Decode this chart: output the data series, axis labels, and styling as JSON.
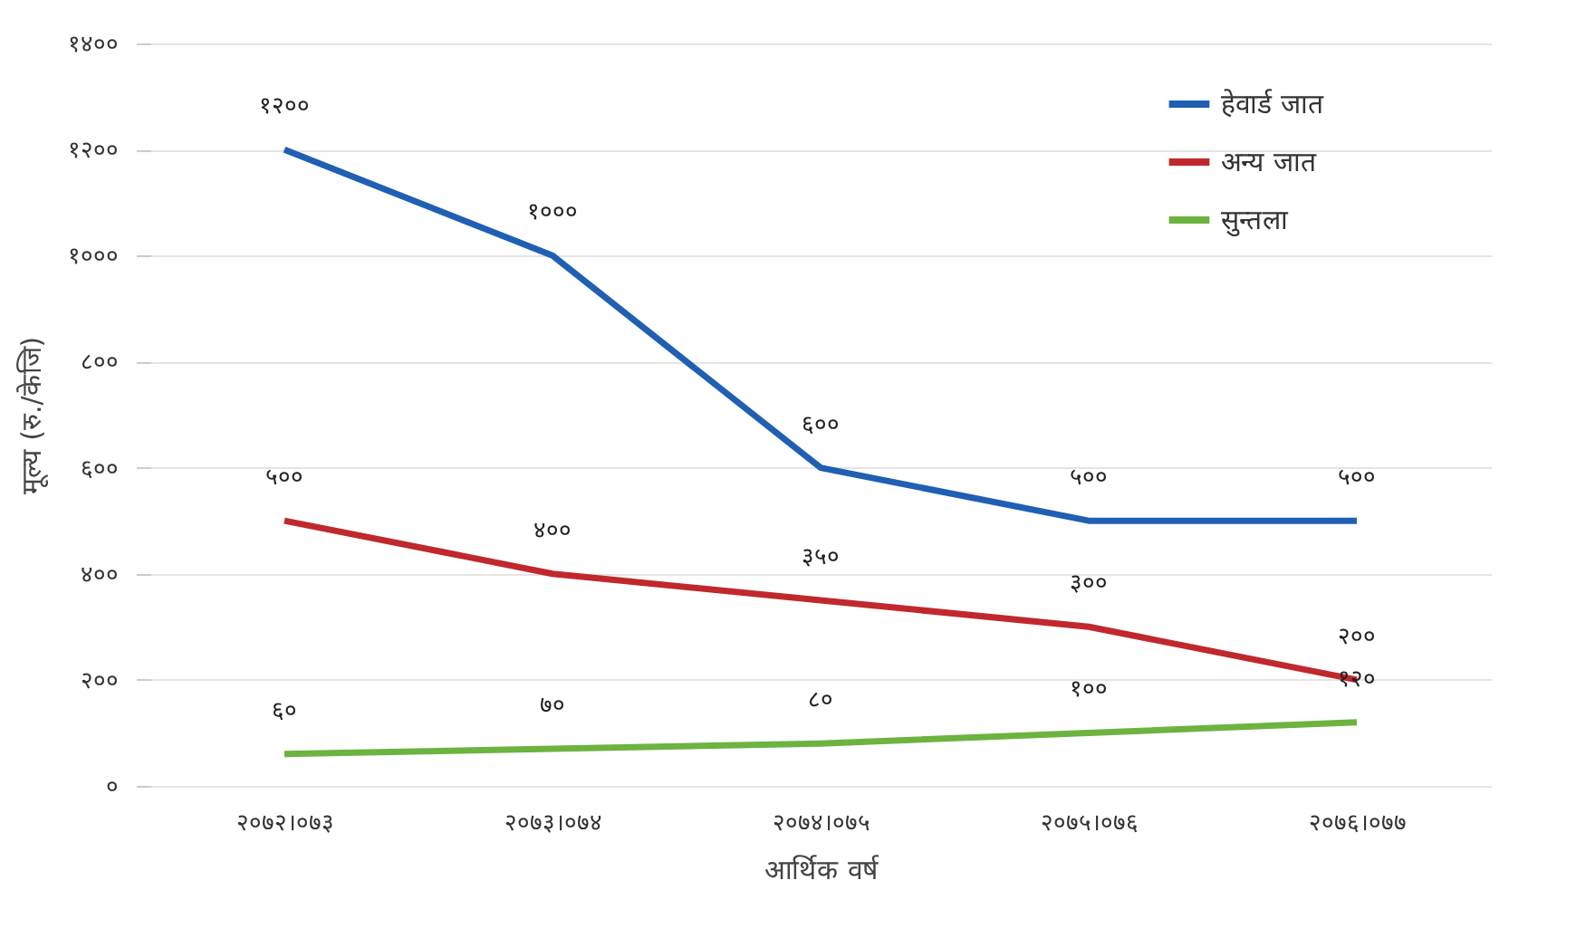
{
  "chart_data": {
    "type": "line",
    "xlabel": "आर्थिक वर्ष",
    "ylabel": "मूल्य (रु./केजि)",
    "categories": [
      "२०७२।०७३",
      "२०७३।०७४",
      "२०७४।०७५",
      "२०७५।०७६",
      "२०७६।०७७"
    ],
    "ylim": [
      0,
      1400
    ],
    "yticks": [
      {
        "value": 0,
        "label": "०"
      },
      {
        "value": 200,
        "label": "२००"
      },
      {
        "value": 400,
        "label": "४००"
      },
      {
        "value": 600,
        "label": "६००"
      },
      {
        "value": 800,
        "label": "८००"
      },
      {
        "value": 1000,
        "label": "१०००"
      },
      {
        "value": 1200,
        "label": "१२००"
      },
      {
        "value": 1400,
        "label": "१४००"
      }
    ],
    "series": [
      {
        "name": "हेवार्ड जात",
        "color": "#1f5fb4",
        "values": [
          1200,
          1000,
          600,
          500,
          500
        ],
        "value_labels": [
          "१२००",
          "१०००",
          "६००",
          "५००",
          "५००"
        ]
      },
      {
        "name": "अन्य जात",
        "color": "#c0282d",
        "values": [
          500,
          400,
          350,
          300,
          200
        ],
        "value_labels": [
          "५००",
          "४००",
          "३५०",
          "३००",
          "२००"
        ]
      },
      {
        "name": "सुन्तला",
        "color": "#6db33f",
        "values": [
          60,
          70,
          80,
          100,
          120
        ],
        "value_labels": [
          "६०",
          "७०",
          "८०",
          "१००",
          "१२०"
        ]
      }
    ],
    "grid": "y",
    "legend": "top right",
    "marker": "none",
    "line_style": "solid"
  }
}
